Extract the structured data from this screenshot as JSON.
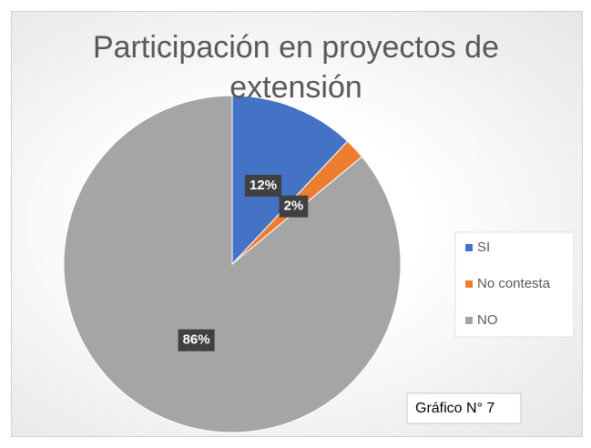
{
  "chart_data": {
    "type": "pie",
    "title": "Participación en proyectos de extensión",
    "categories": [
      "SI",
      "No contesta",
      "NO"
    ],
    "values": [
      12,
      2,
      86
    ],
    "value_labels": [
      "12%",
      "2%",
      "86%"
    ],
    "colors": [
      "#4472c4",
      "#ed7d31",
      "#a5a5a5"
    ],
    "legend": "right",
    "annotation": "Gráfico N° 7"
  }
}
